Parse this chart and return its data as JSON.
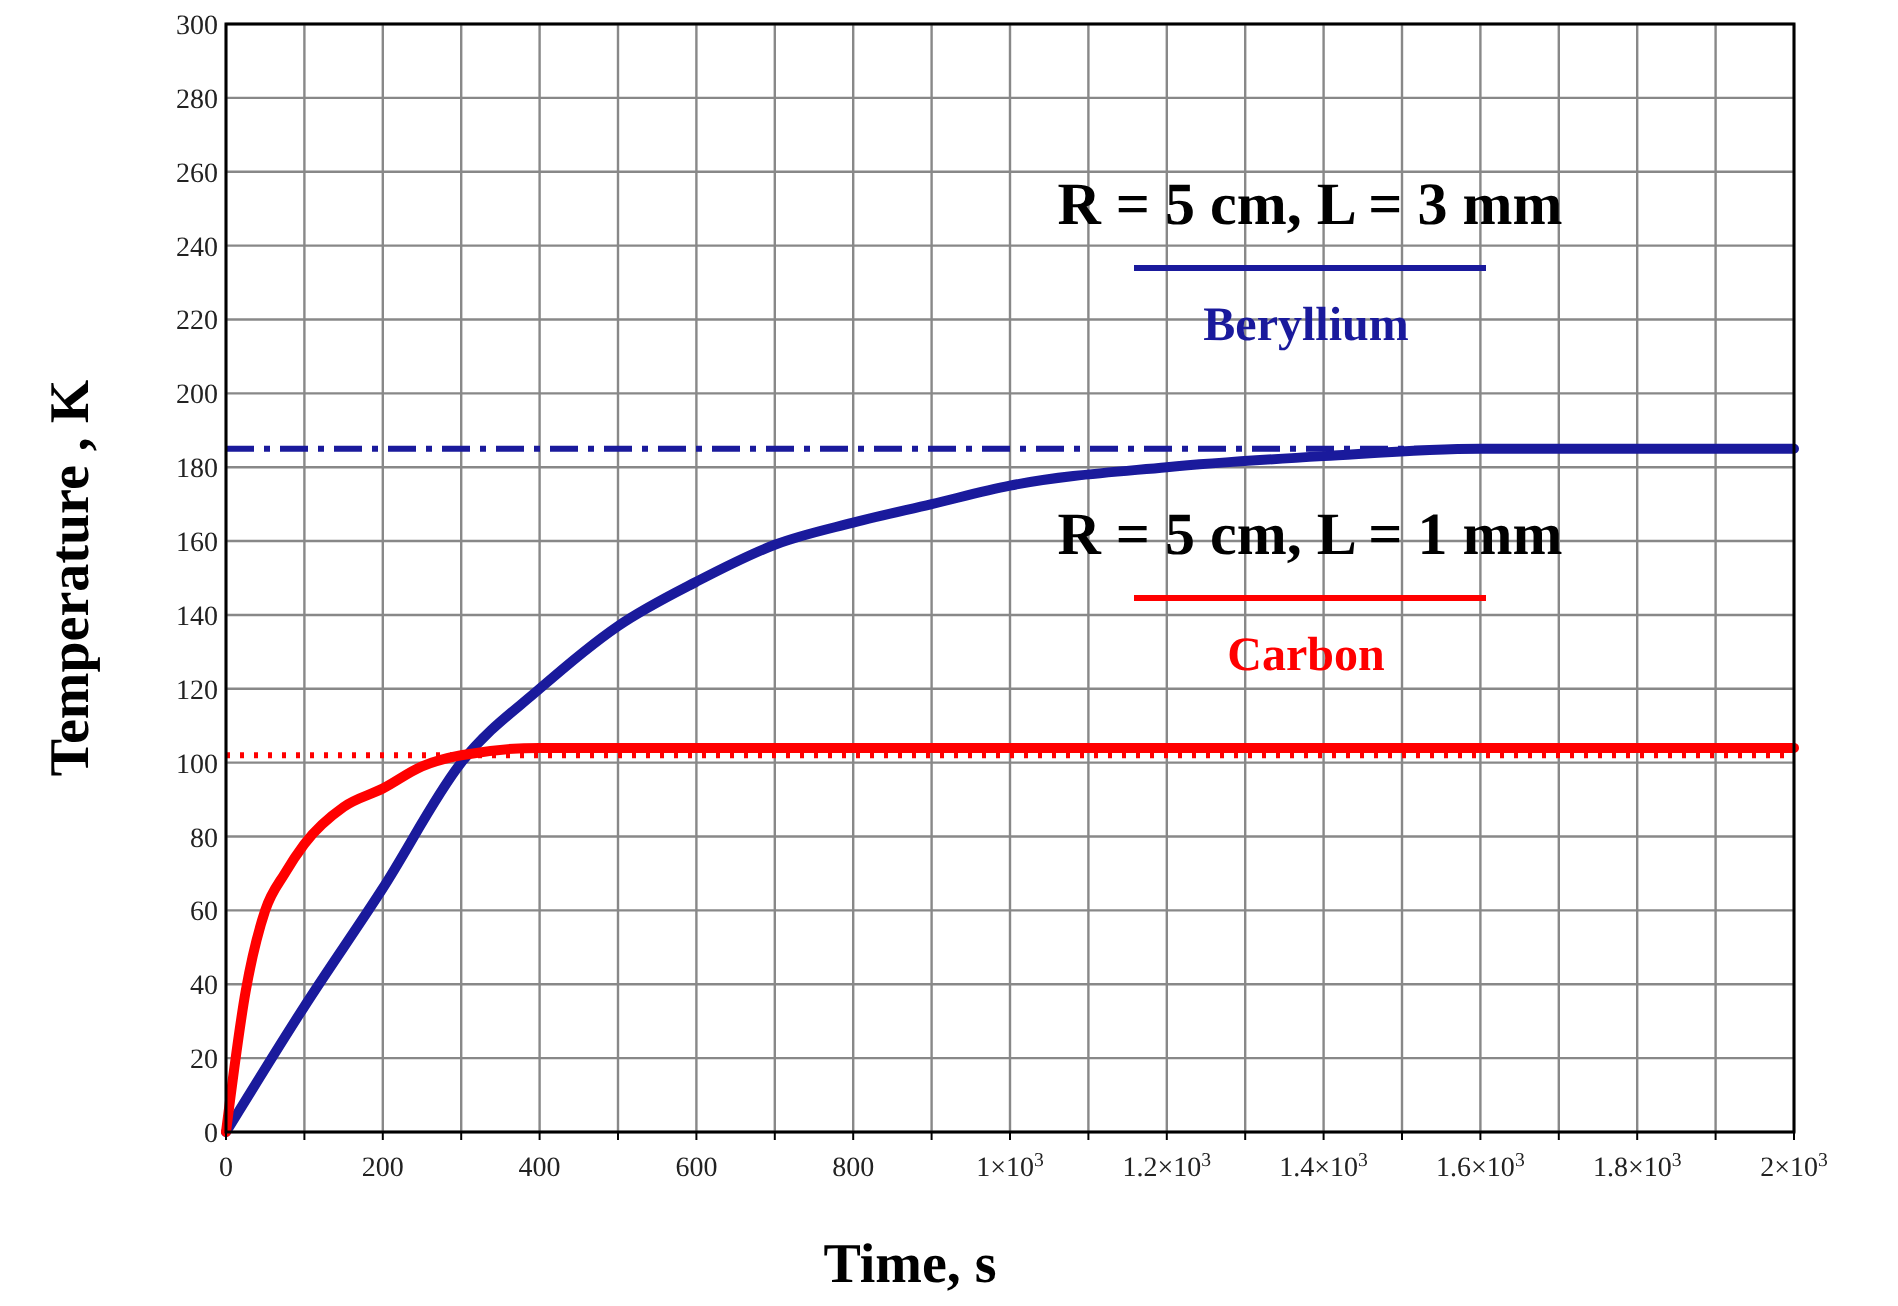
{
  "chart_data": {
    "type": "line",
    "xlabel": "Time, s",
    "ylabel": "Temperature , K",
    "xlim": [
      0,
      2000
    ],
    "ylim": [
      0,
      300
    ],
    "xticks": [
      0,
      {
        "value": 100,
        "label": null
      },
      200,
      {
        "value": 300,
        "label": null
      },
      400,
      {
        "value": 500,
        "label": null
      },
      600,
      {
        "value": 700,
        "label": null
      },
      800,
      {
        "value": 900,
        "label": null
      },
      {
        "value": 1000,
        "label": "1×10$^{3}$"
      },
      {
        "value": 1100,
        "label": null
      },
      {
        "value": 1200,
        "label": "1.2×10$^{3}$"
      },
      {
        "value": 1300,
        "label": null
      },
      {
        "value": 1400,
        "label": "1.4×10$^{3}$"
      },
      {
        "value": 1500,
        "label": null
      },
      {
        "value": 1600,
        "label": "1.6×10$^{3}$"
      },
      {
        "value": 1700,
        "label": null
      },
      {
        "value": 1800,
        "label": "1.8×10$^{3}$"
      },
      {
        "value": 1900,
        "label": null
      },
      {
        "value": 2000,
        "label": "2×10$^{3}$"
      }
    ],
    "yticks": [
      0,
      20,
      40,
      60,
      80,
      100,
      120,
      140,
      160,
      180,
      200,
      220,
      240,
      260,
      280,
      300
    ],
    "grid": true,
    "legend": "top right",
    "marker": "none",
    "line_style": "solid",
    "annotations": [
      "R = 5 cm, L = 3 mm",
      "R = 5 cm, L = 1 mm"
    ],
    "ref_lines": [
      {
        "axis": "y",
        "value": 185,
        "label": null,
        "color": "#1a1a9c",
        "line_style": "dashed"
      },
      {
        "axis": "y",
        "value": 102,
        "label": null,
        "color": "#ff0000",
        "line_style": "dotted"
      }
    ],
    "series": [
      {
        "name": "Beryllium",
        "color": "#1a1a9c",
        "x": [
          0,
          100,
          200,
          300,
          400,
          500,
          600,
          700,
          800,
          900,
          1000,
          1200,
          1400,
          1600,
          2000
        ],
        "values": [
          0,
          34,
          66,
          100,
          120,
          137,
          149,
          159,
          165,
          170,
          175,
          180,
          183,
          185,
          185
        ]
      },
      {
        "name": "Carbon",
        "color": "#ff0000",
        "x": [
          0,
          25,
          50,
          75,
          100,
          150,
          200,
          250,
          300,
          400,
          2000
        ],
        "values": [
          0,
          38,
          60,
          70,
          78,
          88,
          93,
          99,
          102,
          104,
          104
        ]
      }
    ]
  }
}
